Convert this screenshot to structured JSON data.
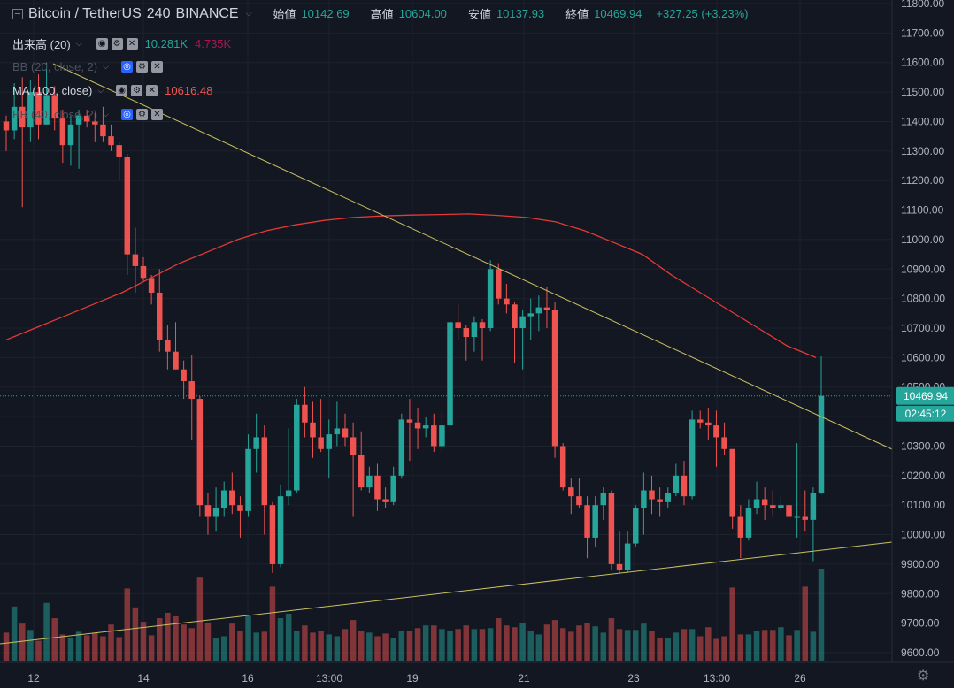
{
  "header": {
    "symbol": "Bitcoin / TetherUS",
    "interval": "240",
    "exchange": "BINANCE",
    "open_label": "始値",
    "open_value": "10142.69",
    "high_label": "高値",
    "high_value": "10604.00",
    "low_label": "安値",
    "low_value": "10137.93",
    "close_label": "終値",
    "close_value": "10469.94",
    "change": "+327.25 (+3.23%)"
  },
  "indicators": [
    {
      "name": "出来高 (20)",
      "values": [
        "10.281K",
        "4.735K"
      ]
    },
    {
      "name": "BB (20, close, 2)",
      "values": []
    },
    {
      "name": "MA (100, close)",
      "values": [
        "10616.48"
      ]
    },
    {
      "name": "BB (40, close, 2)",
      "values": []
    }
  ],
  "colors": {
    "up": "#26a69a",
    "down": "#ef5350",
    "ma": "#e53935",
    "trend": "#c8c060",
    "bg": "#131722",
    "grid": "#1e222d"
  },
  "chart_data": {
    "type": "candlestick",
    "ylim": [
      9550,
      11800
    ],
    "y_ticks": [
      9600,
      9700,
      9800,
      9900,
      10000,
      10100,
      10200,
      10300,
      10400,
      10500,
      10600,
      10700,
      10800,
      10900,
      11000,
      11100,
      11200,
      11300,
      11400,
      11500,
      11600,
      11700,
      11800
    ],
    "x_ticks": [
      "12",
      "14",
      "16",
      "13:00",
      "19",
      "21",
      "23",
      "13:00",
      "26"
    ],
    "last_price": "10469.94",
    "countdown": "02:45:12",
    "candles": [
      [
        11400,
        11420,
        11300,
        11370
      ],
      [
        11370,
        11530,
        11340,
        11450
      ],
      [
        11450,
        11550,
        11110,
        11380
      ],
      [
        11380,
        11540,
        11330,
        11500
      ],
      [
        11500,
        11560,
        11340,
        11390
      ],
      [
        11390,
        11600,
        11390,
        11490
      ],
      [
        11490,
        11520,
        11370,
        11410
      ],
      [
        11410,
        11440,
        11260,
        11320
      ],
      [
        11320,
        11420,
        11250,
        11390
      ],
      [
        11390,
        11440,
        11240,
        11420
      ],
      [
        11420,
        11440,
        11380,
        11400
      ],
      [
        11400,
        11430,
        11330,
        11390
      ],
      [
        11390,
        11450,
        11330,
        11350
      ],
      [
        11350,
        11390,
        11300,
        11320
      ],
      [
        11320,
        11330,
        11200,
        11280
      ],
      [
        11280,
        11290,
        10880,
        10950
      ],
      [
        10950,
        11040,
        10820,
        10910
      ],
      [
        10910,
        10940,
        10860,
        10870
      ],
      [
        10870,
        10880,
        10780,
        10820
      ],
      [
        10820,
        10900,
        10620,
        10660
      ],
      [
        10660,
        10710,
        10560,
        10620
      ],
      [
        10620,
        10720,
        10560,
        10560
      ],
      [
        10560,
        10590,
        10460,
        10520
      ],
      [
        10520,
        10610,
        10320,
        10460
      ],
      [
        10460,
        10470,
        10060,
        10100
      ],
      [
        10100,
        10140,
        10000,
        10060
      ],
      [
        10060,
        10160,
        10010,
        10090
      ],
      [
        10090,
        10180,
        10060,
        10150
      ],
      [
        10150,
        10210,
        10070,
        10100
      ],
      [
        10100,
        10130,
        9990,
        10080
      ],
      [
        10080,
        10340,
        10060,
        10290
      ],
      [
        10290,
        10410,
        10210,
        10330
      ],
      [
        10330,
        10370,
        10000,
        10100
      ],
      [
        10100,
        10110,
        9870,
        9900
      ],
      [
        9900,
        10170,
        9890,
        10130
      ],
      [
        10130,
        10360,
        10100,
        10150
      ],
      [
        10150,
        10460,
        10140,
        10440
      ],
      [
        10440,
        10500,
        10330,
        10380
      ],
      [
        10380,
        10450,
        10260,
        10330
      ],
      [
        10330,
        10460,
        10280,
        10290
      ],
      [
        10290,
        10390,
        10190,
        10340
      ],
      [
        10340,
        10450,
        10300,
        10360
      ],
      [
        10360,
        10410,
        10300,
        10330
      ],
      [
        10330,
        10380,
        10060,
        10270
      ],
      [
        10270,
        10350,
        10150,
        10160
      ],
      [
        10160,
        10230,
        10140,
        10200
      ],
      [
        10200,
        10240,
        10080,
        10120
      ],
      [
        10120,
        10160,
        10090,
        10110
      ],
      [
        10110,
        10230,
        10100,
        10200
      ],
      [
        10200,
        10410,
        10190,
        10390
      ],
      [
        10390,
        10460,
        10250,
        10380
      ],
      [
        10380,
        10430,
        10290,
        10360
      ],
      [
        10360,
        10400,
        10330,
        10370
      ],
      [
        10370,
        10410,
        10280,
        10300
      ],
      [
        10300,
        10420,
        10280,
        10370
      ],
      [
        10370,
        10730,
        10350,
        10720
      ],
      [
        10720,
        10780,
        10660,
        10700
      ],
      [
        10700,
        10710,
        10590,
        10670
      ],
      [
        10670,
        10740,
        10620,
        10720
      ],
      [
        10720,
        10730,
        10590,
        10700
      ],
      [
        10700,
        10930,
        10690,
        10900
      ],
      [
        10900,
        10920,
        10780,
        10800
      ],
      [
        10800,
        10850,
        10750,
        10780
      ],
      [
        10780,
        10790,
        10580,
        10700
      ],
      [
        10700,
        10760,
        10560,
        10740
      ],
      [
        10740,
        10800,
        10660,
        10750
      ],
      [
        10750,
        10810,
        10690,
        10770
      ],
      [
        10770,
        10840,
        10700,
        10760
      ],
      [
        10760,
        10790,
        10260,
        10300
      ],
      [
        10300,
        10310,
        10150,
        10160
      ],
      [
        10160,
        10190,
        10070,
        10130
      ],
      [
        10130,
        10190,
        10090,
        10100
      ],
      [
        10100,
        10130,
        9920,
        9990
      ],
      [
        9990,
        10130,
        9960,
        10100
      ],
      [
        10100,
        10160,
        10050,
        10140
      ],
      [
        10140,
        10150,
        9880,
        9900
      ],
      [
        9900,
        10010,
        9870,
        9880
      ],
      [
        9880,
        10010,
        9870,
        9970
      ],
      [
        9970,
        10100,
        9960,
        10090
      ],
      [
        10090,
        10210,
        10000,
        10150
      ],
      [
        10150,
        10200,
        10070,
        10120
      ],
      [
        10120,
        10160,
        10060,
        10110
      ],
      [
        10110,
        10160,
        10090,
        10140
      ],
      [
        10140,
        10240,
        10130,
        10200
      ],
      [
        10200,
        10250,
        10100,
        10130
      ],
      [
        10130,
        10420,
        10120,
        10390
      ],
      [
        10390,
        10420,
        10360,
        10380
      ],
      [
        10380,
        10430,
        10320,
        10370
      ],
      [
        10370,
        10420,
        10230,
        10330
      ],
      [
        10330,
        10380,
        10270,
        10290
      ],
      [
        10290,
        10290,
        10020,
        10060
      ],
      [
        10060,
        10100,
        9920,
        9990
      ],
      [
        9990,
        10120,
        9980,
        10090
      ],
      [
        10090,
        10180,
        10070,
        10120
      ],
      [
        10120,
        10160,
        10050,
        10100
      ],
      [
        10100,
        10150,
        10060,
        10090
      ],
      [
        10090,
        10130,
        10080,
        10100
      ],
      [
        10100,
        10130,
        10020,
        10060
      ],
      [
        10060,
        10310,
        9990,
        10060
      ],
      [
        10060,
        10150,
        10010,
        10050
      ],
      [
        10050,
        10160,
        9910,
        10140
      ],
      [
        10140,
        10604,
        10138,
        10470
      ]
    ],
    "volume": [
      3.2,
      6.1,
      4.2,
      3.5,
      2.3,
      6.5,
      4.8,
      3.0,
      2.6,
      3.3,
      2.9,
      3.2,
      2.8,
      4.1,
      2.7,
      8.1,
      6.0,
      4.4,
      2.9,
      4.8,
      5.4,
      5.0,
      4.1,
      3.7,
      9.3,
      4.3,
      2.6,
      2.8,
      4.2,
      3.4,
      5.0,
      3.2,
      3.3,
      8.3,
      4.8,
      5.3,
      3.4,
      4.0,
      3.2,
      3.4,
      3.0,
      2.8,
      3.6,
      4.6,
      3.4,
      3.2,
      2.8,
      3.1,
      2.6,
      3.4,
      3.4,
      3.7,
      4.0,
      4.0,
      3.6,
      3.4,
      3.6,
      4.0,
      3.6,
      3.6,
      3.7,
      4.8,
      4.0,
      3.8,
      4.3,
      3.4,
      3.0,
      4.1,
      4.6,
      3.7,
      3.3,
      4.0,
      4.3,
      3.9,
      3.2,
      4.8,
      3.6,
      3.5,
      3.5,
      4.2,
      3.4,
      2.6,
      2.6,
      3.2,
      3.6,
      3.6,
      2.8,
      3.8,
      2.5,
      2.8,
      8.2,
      3.0,
      3.0,
      3.4,
      3.5,
      3.5,
      3.8,
      2.9,
      3.5,
      8.3,
      3.3,
      10.3
    ],
    "ma100": [
      10660,
      10700,
      10740,
      10780,
      10820,
      10870,
      10920,
      10960,
      11000,
      11030,
      11050,
      11065,
      11075,
      11080,
      11083,
      11085,
      11087,
      11082,
      11075,
      11060,
      11030,
      10990,
      10950,
      10880,
      10820,
      10760,
      10700,
      10640,
      10600
    ]
  }
}
